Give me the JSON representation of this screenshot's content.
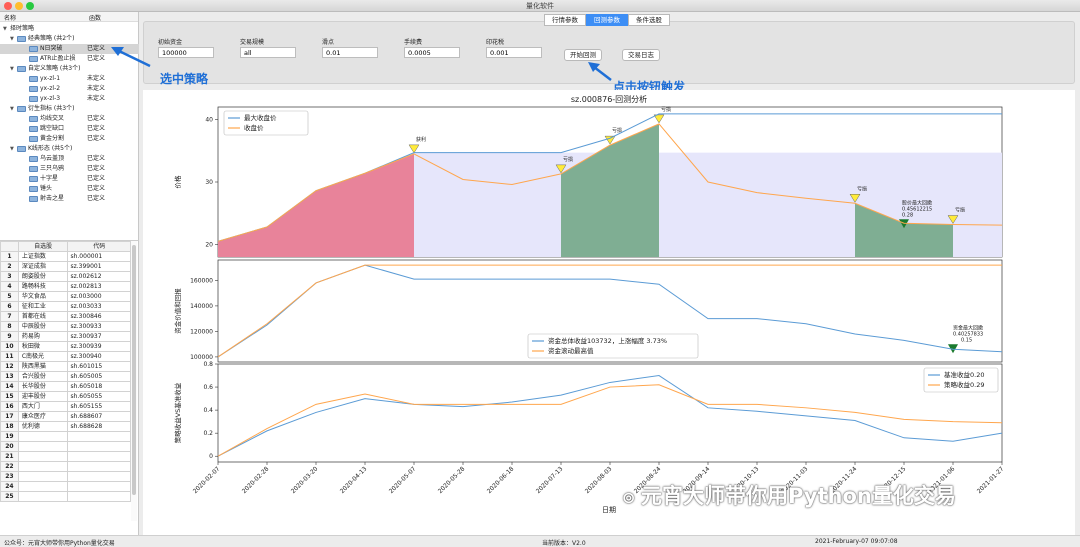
{
  "window": {
    "title": "量化软件"
  },
  "tabs": [
    "行情参数",
    "回测参数",
    "条件选股"
  ],
  "active_tab": 1,
  "tree": {
    "col_name": "名称",
    "col_func": "函数",
    "root": "择时策略",
    "groups": [
      {
        "label": "经典策略 (共2个)",
        "items": [
          {
            "name": "N日突破",
            "status": "已定义"
          },
          {
            "name": "ATR止盈止损",
            "status": "已定义"
          }
        ]
      },
      {
        "label": "自定义策略 (共3个)",
        "items": [
          {
            "name": "yx-zl-1",
            "status": "未定义"
          },
          {
            "name": "yx-zl-2",
            "status": "未定义"
          },
          {
            "name": "yx-zl-3",
            "status": "未定义"
          }
        ]
      },
      {
        "label": "衍生指标 (共3个)",
        "items": [
          {
            "name": "均线交叉",
            "status": "已定义"
          },
          {
            "name": "跳空缺口",
            "status": "已定义"
          },
          {
            "name": "黄金分割",
            "status": "已定义"
          }
        ]
      },
      {
        "label": "K线形态 (共5个)",
        "items": [
          {
            "name": "乌云盖顶",
            "status": "已定义"
          },
          {
            "name": "三只乌鸦",
            "status": "已定义"
          },
          {
            "name": "十字星",
            "status": "已定义"
          },
          {
            "name": "锤头",
            "status": "已定义"
          },
          {
            "name": "射击之星",
            "status": "已定义"
          }
        ]
      }
    ]
  },
  "stock_table": {
    "headers": [
      "自选股",
      "代码"
    ],
    "rows": [
      {
        "name": "上证指数",
        "code": "sh.000001"
      },
      {
        "name": "深证成指",
        "code": "sz.399001"
      },
      {
        "name": "朗姿股份",
        "code": "sz.002612"
      },
      {
        "name": "路畅科技",
        "code": "sz.002813"
      },
      {
        "name": "华文食品",
        "code": "sz.003000"
      },
      {
        "name": "征和工业",
        "code": "sz.003033"
      },
      {
        "name": "首都在线",
        "code": "sz.300846"
      },
      {
        "name": "中辰股份",
        "code": "sz.300933"
      },
      {
        "name": "药易购",
        "code": "sz.300937"
      },
      {
        "name": "秋田微",
        "code": "sz.300939"
      },
      {
        "name": "C南极光",
        "code": "sz.300940"
      },
      {
        "name": "陕西黑猫",
        "code": "sh.601015"
      },
      {
        "name": "合兴股份",
        "code": "sh.605005"
      },
      {
        "name": "长华股份",
        "code": "sh.605018"
      },
      {
        "name": "迎丰股份",
        "code": "sh.605055"
      },
      {
        "name": "西大门",
        "code": "sh.605155"
      },
      {
        "name": "康众医疗",
        "code": "sh.688607"
      },
      {
        "name": "优利德",
        "code": "sh.688628"
      },
      {
        "name": "",
        "code": ""
      },
      {
        "name": "",
        "code": ""
      },
      {
        "name": "",
        "code": ""
      },
      {
        "name": "",
        "code": ""
      },
      {
        "name": "",
        "code": ""
      },
      {
        "name": "",
        "code": ""
      },
      {
        "name": "",
        "code": ""
      }
    ]
  },
  "params": [
    {
      "label": "初始资金",
      "value": "100000"
    },
    {
      "label": "交易规模",
      "value": "all"
    },
    {
      "label": "滑点",
      "value": "0.01"
    },
    {
      "label": "手续费",
      "value": "0.0005"
    },
    {
      "label": "印花税",
      "value": "0.001"
    }
  ],
  "buttons": {
    "start": "开始回测",
    "log": "交易日志"
  },
  "annotations": {
    "select": "选中策略",
    "click": "点击按钮触发"
  },
  "status": {
    "left": "公众号：元宵大师带你用Python量化交易",
    "version": "当前版本：V2.0",
    "time": "2021-February-07 09:07:08"
  },
  "watermark": "元宵大师带你用Python量化交易",
  "colors": {
    "accent": "#3d8ef5",
    "blue_line": "#5b9bd5",
    "orange_line": "#ffa64d",
    "green_fill": "#7fae93",
    "red_fill": "#e8839a",
    "lavender_fill": "#e6e6fb",
    "marker_yellow": "#ffeb3b",
    "marker_green": "#1a7a2e"
  },
  "chart_data": {
    "type": "line",
    "title": "sz.000876-回测分析",
    "xlabel": "日期",
    "x_ticks": [
      "2020-02-07",
      "2020-02-28",
      "2020-03-20",
      "2020-04-13",
      "2020-05-07",
      "2020-05-28",
      "2020-06-18",
      "2020-07-13",
      "2020-08-03",
      "2020-08-24",
      "2020-09-14",
      "2020-10-13",
      "2020-11-03",
      "2020-11-24",
      "2020-12-15",
      "2021-01-06",
      "2021-01-27"
    ],
    "panels": [
      {
        "ylabel": "价格",
        "ylim": [
          18,
          42
        ],
        "yticks": [
          20,
          30,
          40
        ],
        "series": [
          {
            "name": "最大收盘价",
            "color": "#5b9bd5",
            "values": [
              20.5,
              22.8,
              28.6,
              31.4,
              34.7,
              34.7,
              34.7,
              34.7,
              37.0,
              40.9,
              40.9,
              40.9,
              40.9,
              40.9,
              40.9,
              40.9,
              40.9
            ]
          },
          {
            "name": "收盘价",
            "color": "#ffa64d",
            "values": [
              20.5,
              22.8,
              28.6,
              31.4,
              34.5,
              30.4,
              29.6,
              31.3,
              35.9,
              39.3,
              30.0,
              28.3,
              27.4,
              26.6,
              23.4,
              23.2,
              23.1
            ]
          }
        ],
        "annotations": [
          "获利",
          "亏损",
          "亏损",
          "亏损",
          "亏损",
          "亏损",
          "亏损",
          "股价最大回撤",
          "0.45612215",
          "0.28"
        ],
        "legend": "top-left"
      },
      {
        "ylabel": "资金价值和回报",
        "ylim": [
          96000,
          176000
        ],
        "yticks": [
          100000,
          120000,
          140000,
          160000
        ],
        "series": [
          {
            "name": "资金总体收益103732，上涨幅度 3.73%",
            "color": "#5b9bd5",
            "values": [
              100000,
              125000,
              158000,
              172000,
              161000,
              161000,
              161000,
              161000,
              161000,
              157000,
              130000,
              130000,
              126000,
              118000,
              113000,
              106000,
              104000
            ]
          },
          {
            "name": "资金滚动最高值",
            "color": "#ffa64d",
            "values": [
              100000,
              126000,
              158000,
              172000,
              172000,
              172000,
              172000,
              172000,
              172000,
              172000,
              172000,
              172000,
              172000,
              172000,
              172000,
              172000,
              172000
            ]
          }
        ],
        "annotations": [
          "资金最大回撤",
          "0.40257833",
          "0.15"
        ],
        "legend": "bottom-center"
      },
      {
        "ylabel": "策略收益VS基准收益",
        "ylim": [
          -0.05,
          0.8
        ],
        "yticks": [
          0.0,
          0.2,
          0.4,
          0.6,
          0.8
        ],
        "series": [
          {
            "name": "基准收益0.20",
            "color": "#5b9bd5",
            "values": [
              0.0,
              0.22,
              0.38,
              0.5,
              0.45,
              0.43,
              0.47,
              0.53,
              0.64,
              0.7,
              0.42,
              0.39,
              0.35,
              0.31,
              0.16,
              0.13,
              0.2
            ]
          },
          {
            "name": "策略收益0.29",
            "color": "#ffa64d",
            "values": [
              0.0,
              0.24,
              0.45,
              0.54,
              0.45,
              0.45,
              0.45,
              0.45,
              0.6,
              0.62,
              0.45,
              0.45,
              0.42,
              0.38,
              0.32,
              0.3,
              0.29
            ]
          }
        ],
        "legend": "top-right"
      }
    ]
  }
}
